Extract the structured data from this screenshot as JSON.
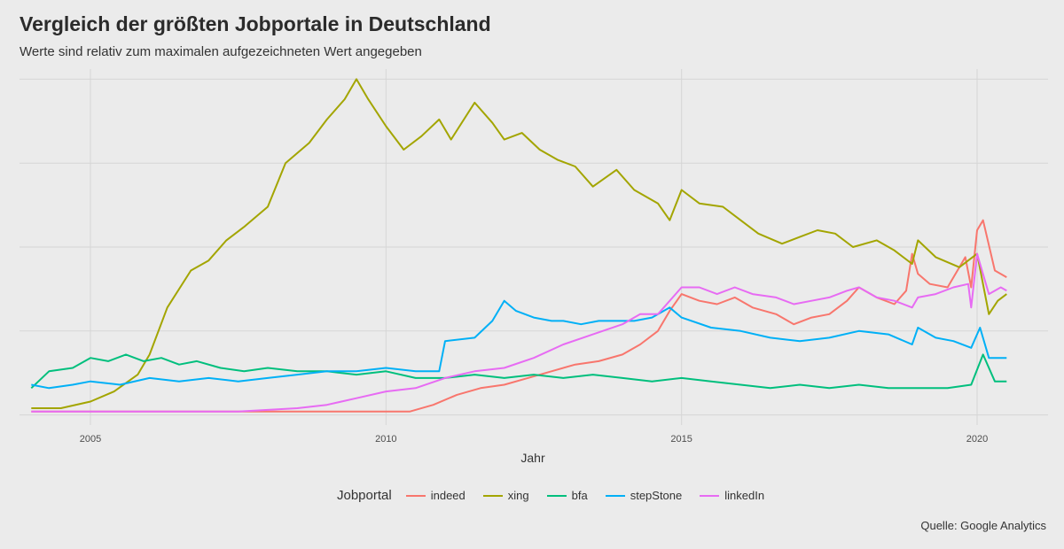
{
  "header": {
    "title": "Vergleich der größten Jobportale in Deutschland",
    "subtitle": "Werte sind relativ zum maximalen aufgezeichneten Wert angegeben",
    "caption": "Quelle: Google Analytics"
  },
  "chart_data": {
    "type": "line",
    "title": "Vergleich der größten Jobportale in Deutschland",
    "subtitle": "Werte sind relativ zum maximalen aufgezeichneten Wert angegeben",
    "xlabel": "Jahr",
    "ylabel": "",
    "xlim": [
      2003.8,
      2021.2
    ],
    "ylim": [
      -3,
      103
    ],
    "x_ticks": [
      2005,
      2010,
      2015,
      2020
    ],
    "y_gridlines": [
      0,
      25,
      50,
      75,
      100
    ],
    "y_tick_labels_shown": false,
    "grid": true,
    "legend": {
      "title": "Jobportal",
      "placement": "bottom"
    },
    "series": [
      {
        "name": "indeed",
        "color": "#F8766D",
        "points": [
          [
            2004.0,
            1
          ],
          [
            2006.0,
            1
          ],
          [
            2008.0,
            1
          ],
          [
            2010.0,
            1
          ],
          [
            2010.4,
            1
          ],
          [
            2010.8,
            3
          ],
          [
            2011.2,
            6
          ],
          [
            2011.6,
            8
          ],
          [
            2012.0,
            9
          ],
          [
            2012.4,
            11
          ],
          [
            2012.8,
            13
          ],
          [
            2013.2,
            15
          ],
          [
            2013.6,
            16
          ],
          [
            2014.0,
            18
          ],
          [
            2014.3,
            21
          ],
          [
            2014.6,
            25
          ],
          [
            2014.8,
            31
          ],
          [
            2015.0,
            36
          ],
          [
            2015.3,
            34
          ],
          [
            2015.6,
            33
          ],
          [
            2015.9,
            35
          ],
          [
            2016.2,
            32
          ],
          [
            2016.6,
            30
          ],
          [
            2016.9,
            27
          ],
          [
            2017.2,
            29
          ],
          [
            2017.5,
            30
          ],
          [
            2017.8,
            34
          ],
          [
            2018.0,
            38
          ],
          [
            2018.3,
            35
          ],
          [
            2018.6,
            33
          ],
          [
            2018.8,
            37
          ],
          [
            2018.9,
            48
          ],
          [
            2019.0,
            42
          ],
          [
            2019.2,
            39
          ],
          [
            2019.5,
            38
          ],
          [
            2019.8,
            47
          ],
          [
            2019.9,
            38
          ],
          [
            2020.0,
            55
          ],
          [
            2020.1,
            58
          ],
          [
            2020.3,
            43
          ],
          [
            2020.5,
            41
          ]
        ]
      },
      {
        "name": "xing",
        "color": "#A3A500",
        "points": [
          [
            2004.0,
            2
          ],
          [
            2004.5,
            2
          ],
          [
            2005.0,
            4
          ],
          [
            2005.4,
            7
          ],
          [
            2005.8,
            12
          ],
          [
            2006.0,
            18
          ],
          [
            2006.3,
            32
          ],
          [
            2006.7,
            43
          ],
          [
            2007.0,
            46
          ],
          [
            2007.3,
            52
          ],
          [
            2007.6,
            56
          ],
          [
            2008.0,
            62
          ],
          [
            2008.3,
            75
          ],
          [
            2008.7,
            81
          ],
          [
            2009.0,
            88
          ],
          [
            2009.3,
            94
          ],
          [
            2009.5,
            100
          ],
          [
            2009.7,
            94
          ],
          [
            2010.0,
            86
          ],
          [
            2010.3,
            79
          ],
          [
            2010.6,
            83
          ],
          [
            2010.9,
            88
          ],
          [
            2011.1,
            82
          ],
          [
            2011.5,
            93
          ],
          [
            2011.8,
            87
          ],
          [
            2012.0,
            82
          ],
          [
            2012.3,
            84
          ],
          [
            2012.6,
            79
          ],
          [
            2012.9,
            76
          ],
          [
            2013.2,
            74
          ],
          [
            2013.5,
            68
          ],
          [
            2013.9,
            73
          ],
          [
            2014.2,
            67
          ],
          [
            2014.6,
            63
          ],
          [
            2014.8,
            58
          ],
          [
            2015.0,
            67
          ],
          [
            2015.3,
            63
          ],
          [
            2015.7,
            62
          ],
          [
            2016.0,
            58
          ],
          [
            2016.3,
            54
          ],
          [
            2016.7,
            51
          ],
          [
            2017.0,
            53
          ],
          [
            2017.3,
            55
          ],
          [
            2017.6,
            54
          ],
          [
            2017.9,
            50
          ],
          [
            2018.3,
            52
          ],
          [
            2018.6,
            49
          ],
          [
            2018.9,
            45
          ],
          [
            2019.0,
            52
          ],
          [
            2019.3,
            47
          ],
          [
            2019.7,
            44
          ],
          [
            2020.0,
            48
          ],
          [
            2020.2,
            30
          ],
          [
            2020.35,
            34
          ],
          [
            2020.5,
            36
          ]
        ]
      },
      {
        "name": "bfa",
        "color": "#00BF7D",
        "points": [
          [
            2004.0,
            8
          ],
          [
            2004.3,
            13
          ],
          [
            2004.7,
            14
          ],
          [
            2005.0,
            17
          ],
          [
            2005.3,
            16
          ],
          [
            2005.6,
            18
          ],
          [
            2005.9,
            16
          ],
          [
            2006.2,
            17
          ],
          [
            2006.5,
            15
          ],
          [
            2006.8,
            16
          ],
          [
            2007.2,
            14
          ],
          [
            2007.6,
            13
          ],
          [
            2008.0,
            14
          ],
          [
            2008.5,
            13
          ],
          [
            2009.0,
            13
          ],
          [
            2009.5,
            12
          ],
          [
            2010.0,
            13
          ],
          [
            2010.5,
            11
          ],
          [
            2011.0,
            11
          ],
          [
            2011.5,
            12
          ],
          [
            2012.0,
            11
          ],
          [
            2012.5,
            12
          ],
          [
            2013.0,
            11
          ],
          [
            2013.5,
            12
          ],
          [
            2014.0,
            11
          ],
          [
            2014.5,
            10
          ],
          [
            2015.0,
            11
          ],
          [
            2015.5,
            10
          ],
          [
            2016.0,
            9
          ],
          [
            2016.5,
            8
          ],
          [
            2017.0,
            9
          ],
          [
            2017.5,
            8
          ],
          [
            2018.0,
            9
          ],
          [
            2018.5,
            8
          ],
          [
            2019.0,
            8
          ],
          [
            2019.5,
            8
          ],
          [
            2019.9,
            9
          ],
          [
            2020.1,
            18
          ],
          [
            2020.3,
            10
          ],
          [
            2020.5,
            10
          ]
        ]
      },
      {
        "name": "stepStone",
        "color": "#00B0F6",
        "points": [
          [
            2004.0,
            9
          ],
          [
            2004.3,
            8
          ],
          [
            2004.7,
            9
          ],
          [
            2005.0,
            10
          ],
          [
            2005.5,
            9
          ],
          [
            2006.0,
            11
          ],
          [
            2006.5,
            10
          ],
          [
            2007.0,
            11
          ],
          [
            2007.5,
            10
          ],
          [
            2008.0,
            11
          ],
          [
            2008.5,
            12
          ],
          [
            2009.0,
            13
          ],
          [
            2009.5,
            13
          ],
          [
            2010.0,
            14
          ],
          [
            2010.5,
            13
          ],
          [
            2010.9,
            13
          ],
          [
            2011.0,
            22
          ],
          [
            2011.5,
            23
          ],
          [
            2011.8,
            28
          ],
          [
            2012.0,
            34
          ],
          [
            2012.2,
            31
          ],
          [
            2012.5,
            29
          ],
          [
            2012.8,
            28
          ],
          [
            2013.0,
            28
          ],
          [
            2013.3,
            27
          ],
          [
            2013.6,
            28
          ],
          [
            2013.9,
            28
          ],
          [
            2014.2,
            28
          ],
          [
            2014.5,
            29
          ],
          [
            2014.8,
            32
          ],
          [
            2015.0,
            29
          ],
          [
            2015.5,
            26
          ],
          [
            2016.0,
            25
          ],
          [
            2016.5,
            23
          ],
          [
            2017.0,
            22
          ],
          [
            2017.5,
            23
          ],
          [
            2018.0,
            25
          ],
          [
            2018.5,
            24
          ],
          [
            2018.9,
            21
          ],
          [
            2019.0,
            26
          ],
          [
            2019.3,
            23
          ],
          [
            2019.6,
            22
          ],
          [
            2019.9,
            20
          ],
          [
            2020.05,
            26
          ],
          [
            2020.2,
            17
          ],
          [
            2020.4,
            17
          ],
          [
            2020.5,
            17
          ]
        ]
      },
      {
        "name": "linkedIn",
        "color": "#E76BF3",
        "points": [
          [
            2004.0,
            1
          ],
          [
            2006.0,
            1
          ],
          [
            2007.5,
            1
          ],
          [
            2008.5,
            2
          ],
          [
            2009.0,
            3
          ],
          [
            2009.5,
            5
          ],
          [
            2010.0,
            7
          ],
          [
            2010.5,
            8
          ],
          [
            2011.0,
            11
          ],
          [
            2011.5,
            13
          ],
          [
            2012.0,
            14
          ],
          [
            2012.5,
            17
          ],
          [
            2013.0,
            21
          ],
          [
            2013.5,
            24
          ],
          [
            2014.0,
            27
          ],
          [
            2014.3,
            30
          ],
          [
            2014.6,
            30
          ],
          [
            2014.9,
            36
          ],
          [
            2015.0,
            38
          ],
          [
            2015.3,
            38
          ],
          [
            2015.6,
            36
          ],
          [
            2015.9,
            38
          ],
          [
            2016.2,
            36
          ],
          [
            2016.6,
            35
          ],
          [
            2016.9,
            33
          ],
          [
            2017.2,
            34
          ],
          [
            2017.5,
            35
          ],
          [
            2017.8,
            37
          ],
          [
            2018.0,
            38
          ],
          [
            2018.3,
            35
          ],
          [
            2018.6,
            34
          ],
          [
            2018.9,
            32
          ],
          [
            2019.0,
            35
          ],
          [
            2019.3,
            36
          ],
          [
            2019.6,
            38
          ],
          [
            2019.85,
            39
          ],
          [
            2019.9,
            32
          ],
          [
            2020.0,
            48
          ],
          [
            2020.2,
            36
          ],
          [
            2020.4,
            38
          ],
          [
            2020.5,
            37
          ]
        ]
      }
    ]
  }
}
